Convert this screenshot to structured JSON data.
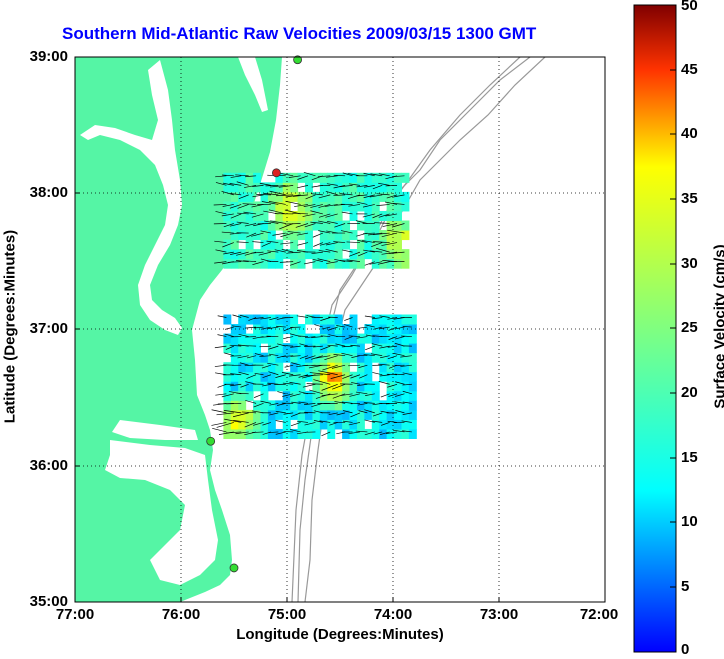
{
  "title": "Southern Mid-Atlantic Raw Velocities 2009/03/15 1300 GMT",
  "x_axis": {
    "label": "Longitude (Degrees:Minutes)",
    "ticks": [
      "77:00",
      "76:00",
      "75:00",
      "74:00",
      "73:00",
      "72:00"
    ]
  },
  "y_axis": {
    "label": "Latitude (Degrees:Minutes)",
    "ticks": [
      "39:00",
      "38:00",
      "37:00",
      "36:00",
      "35:00"
    ]
  },
  "colorbar": {
    "label": "Surface Velocity (cm/s)",
    "ticks": [
      "50",
      "45",
      "40",
      "35",
      "30",
      "25",
      "20",
      "15",
      "10",
      "5",
      "0"
    ],
    "min": 0,
    "max": 50,
    "colormap": "jet"
  },
  "colors": {
    "title": "#0000ff",
    "land": "#55f5a5",
    "bathymetry": "#999999",
    "grid": "#000000",
    "station_green": "#33dd33",
    "station_red": "#dd2222"
  },
  "map_extent": {
    "lon": [
      -77,
      -72
    ],
    "lat": [
      35,
      39
    ]
  },
  "stations": [
    {
      "color": "green",
      "lon": -74.9,
      "lat": 38.98
    },
    {
      "color": "red",
      "lon": -75.1,
      "lat": 38.15
    },
    {
      "color": "green",
      "lon": -75.72,
      "lat": 36.18
    },
    {
      "color": "green",
      "lon": -75.5,
      "lat": 35.25
    }
  ],
  "velocity_regions": [
    {
      "name": "north",
      "lon": [
        -75.6,
        -73.9
      ],
      "lat": [
        37.45,
        38.1
      ],
      "typical_speed_cm_s": 18,
      "hotspots": [
        {
          "lon": -75.0,
          "lat": 37.85,
          "speed_cm_s": 40
        },
        {
          "lon": -73.95,
          "lat": 37.6,
          "speed_cm_s": 36
        }
      ]
    },
    {
      "name": "south",
      "lon": [
        -75.6,
        -73.8
      ],
      "lat": [
        36.2,
        37.1
      ],
      "typical_speed_cm_s": 13,
      "hotspots": [
        {
          "lon": -74.6,
          "lat": 36.6,
          "speed_cm_s": 45
        },
        {
          "lon": -75.5,
          "lat": 36.3,
          "speed_cm_s": 40
        }
      ]
    }
  ]
}
